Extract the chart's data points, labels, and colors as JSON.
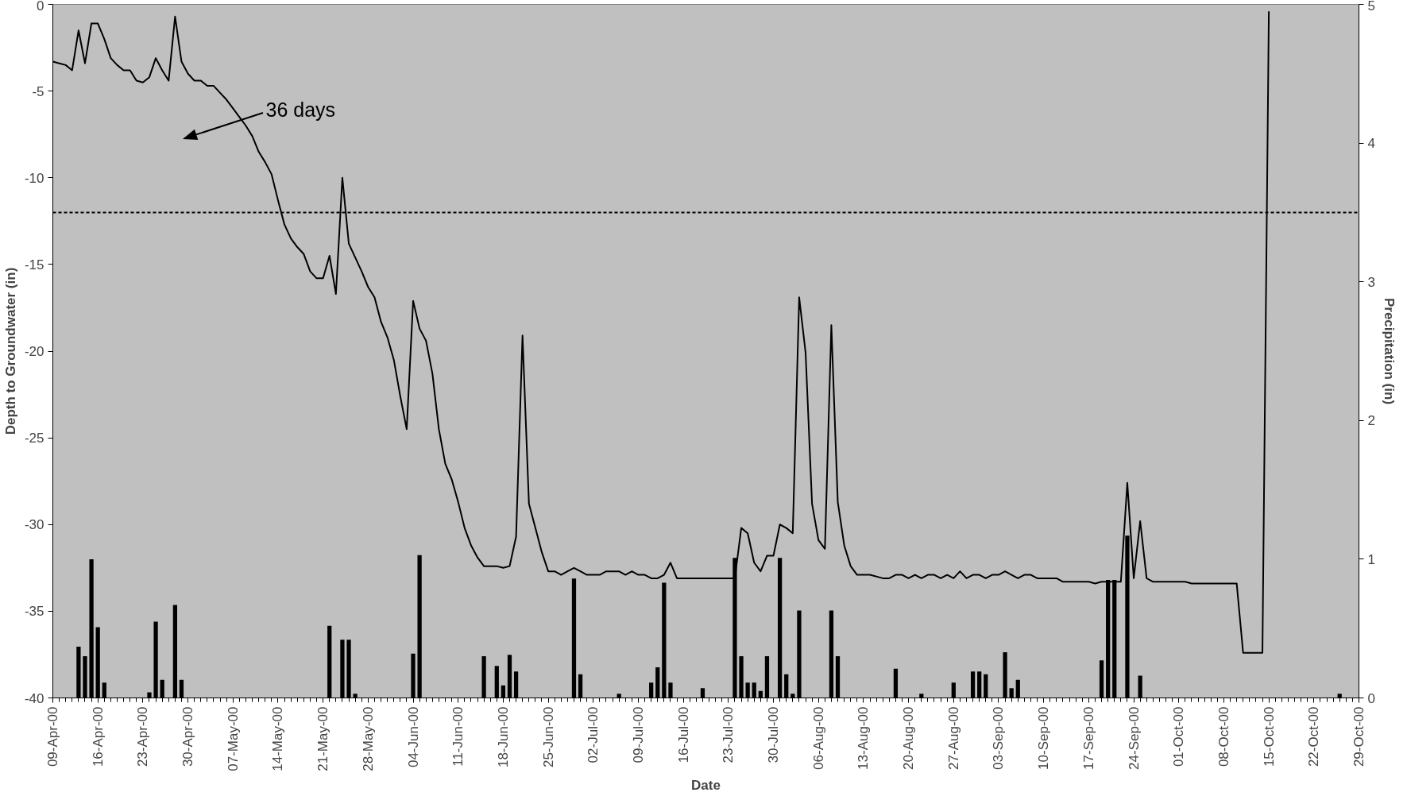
{
  "chart_data": {
    "type": "line",
    "xlabel": "Date",
    "ylabel": "Depth to Groundwater (in)",
    "y2label": "Precipitation (in)",
    "xlim": [
      "2000-04-09",
      "2000-10-29"
    ],
    "xticks": [
      {
        "value": "2000-04-09",
        "label": "09-Apr-00"
      },
      {
        "value": "2000-04-16",
        "label": "16-Apr-00"
      },
      {
        "value": "2000-04-23",
        "label": "23-Apr-00"
      },
      {
        "value": "2000-04-30",
        "label": "30-Apr-00"
      },
      {
        "value": "2000-05-07",
        "label": "07-May-00"
      },
      {
        "value": "2000-05-14",
        "label": "14-May-00"
      },
      {
        "value": "2000-05-21",
        "label": "21-May-00"
      },
      {
        "value": "2000-05-28",
        "label": "28-May-00"
      },
      {
        "value": "2000-06-04",
        "label": "04-Jun-00"
      },
      {
        "value": "2000-06-11",
        "label": "11-Jun-00"
      },
      {
        "value": "2000-06-18",
        "label": "18-Jun-00"
      },
      {
        "value": "2000-06-25",
        "label": "25-Jun-00"
      },
      {
        "value": "2000-07-02",
        "label": "02-Jul-00"
      },
      {
        "value": "2000-07-09",
        "label": "09-Jul-00"
      },
      {
        "value": "2000-07-16",
        "label": "16-Jul-00"
      },
      {
        "value": "2000-07-23",
        "label": "23-Jul-00"
      },
      {
        "value": "2000-07-30",
        "label": "30-Jul-00"
      },
      {
        "value": "2000-08-06",
        "label": "06-Aug-00"
      },
      {
        "value": "2000-08-13",
        "label": "13-Aug-00"
      },
      {
        "value": "2000-08-20",
        "label": "20-Aug-00"
      },
      {
        "value": "2000-08-27",
        "label": "27-Aug-00"
      },
      {
        "value": "2000-09-03",
        "label": "03-Sep-00"
      },
      {
        "value": "2000-09-10",
        "label": "10-Sep-00"
      },
      {
        "value": "2000-09-17",
        "label": "17-Sep-00"
      },
      {
        "value": "2000-09-24",
        "label": "24-Sep-00"
      },
      {
        "value": "2000-10-01",
        "label": "01-Oct-00"
      },
      {
        "value": "2000-10-08",
        "label": "08-Oct-00"
      },
      {
        "value": "2000-10-15",
        "label": "15-Oct-00"
      },
      {
        "value": "2000-10-22",
        "label": "22-Oct-00"
      },
      {
        "value": "2000-10-29",
        "label": "29-Oct-00"
      }
    ],
    "ylim": [
      -40,
      0
    ],
    "yticks": [
      -40,
      -35,
      -30,
      -25,
      -20,
      -15,
      -10,
      -5,
      0
    ],
    "y2lim": [
      0,
      5
    ],
    "y2ticks": [
      0,
      1,
      2,
      3,
      4,
      5
    ],
    "grid": false,
    "ref_lines": [
      {
        "axis": "y",
        "value": -12,
        "color": "#000000",
        "line_style": "dashed"
      }
    ],
    "annotations": [
      "36 days"
    ],
    "series": [
      {
        "type": "bar",
        "axis": "y2",
        "color": "#000000",
        "x": [
          "2000-04-13",
          "2000-04-14",
          "2000-04-15",
          "2000-04-16",
          "2000-04-17",
          "2000-04-24",
          "2000-04-25",
          "2000-04-26",
          "2000-04-28",
          "2000-04-29",
          "2000-05-22",
          "2000-05-24",
          "2000-05-25",
          "2000-05-26",
          "2000-06-04",
          "2000-06-05",
          "2000-06-15",
          "2000-06-17",
          "2000-06-18",
          "2000-06-19",
          "2000-06-20",
          "2000-06-29",
          "2000-06-30",
          "2000-07-06",
          "2000-07-11",
          "2000-07-12",
          "2000-07-13",
          "2000-07-14",
          "2000-07-19",
          "2000-07-24",
          "2000-07-25",
          "2000-07-26",
          "2000-07-27",
          "2000-07-28",
          "2000-07-29",
          "2000-07-31",
          "2000-08-01",
          "2000-08-02",
          "2000-08-03",
          "2000-08-08",
          "2000-08-09",
          "2000-08-18",
          "2000-08-22",
          "2000-08-27",
          "2000-08-30",
          "2000-08-31",
          "2000-09-01",
          "2000-09-04",
          "2000-09-05",
          "2000-09-06",
          "2000-09-19",
          "2000-09-20",
          "2000-09-21",
          "2000-09-23",
          "2000-09-25",
          "2000-10-26"
        ],
        "values": [
          0.37,
          0.3,
          1.0,
          0.51,
          0.11,
          0.04,
          0.55,
          0.13,
          0.67,
          0.13,
          0.52,
          0.42,
          0.42,
          0.03,
          0.32,
          1.03,
          0.3,
          0.23,
          0.09,
          0.31,
          0.19,
          0.86,
          0.17,
          0.03,
          0.11,
          0.22,
          0.83,
          0.11,
          0.07,
          1.01,
          0.3,
          0.11,
          0.11,
          0.05,
          0.3,
          1.01,
          0.17,
          0.03,
          0.63,
          0.63,
          0.3,
          0.21,
          0.03,
          0.11,
          0.19,
          0.19,
          0.17,
          0.33,
          0.07,
          0.13,
          0.27,
          0.85,
          0.85,
          1.17,
          0.16,
          0.03
        ]
      },
      {
        "color": "#000000",
        "line_style": "solid",
        "x": [
          "2000-04-09",
          "2000-04-10",
          "2000-04-11",
          "2000-04-12",
          "2000-04-13",
          "2000-04-14",
          "2000-04-15",
          "2000-04-16",
          "2000-04-17",
          "2000-04-18",
          "2000-04-19",
          "2000-04-20",
          "2000-04-21",
          "2000-04-22",
          "2000-04-23",
          "2000-04-24",
          "2000-04-25",
          "2000-04-26",
          "2000-04-27",
          "2000-04-28",
          "2000-04-29",
          "2000-04-30",
          "2000-05-01",
          "2000-05-02",
          "2000-05-03",
          "2000-05-04",
          "2000-05-05",
          "2000-05-06",
          "2000-05-07",
          "2000-05-08",
          "2000-05-09",
          "2000-05-10",
          "2000-05-11",
          "2000-05-12",
          "2000-05-13",
          "2000-05-14",
          "2000-05-15",
          "2000-05-16",
          "2000-05-17",
          "2000-05-18",
          "2000-05-19",
          "2000-05-20",
          "2000-05-21",
          "2000-05-22",
          "2000-05-23",
          "2000-05-24",
          "2000-05-25",
          "2000-05-26",
          "2000-05-27",
          "2000-05-28",
          "2000-05-29",
          "2000-05-30",
          "2000-05-31",
          "2000-06-01",
          "2000-06-02",
          "2000-06-03",
          "2000-06-04",
          "2000-06-05",
          "2000-06-06",
          "2000-06-07",
          "2000-06-08",
          "2000-06-09",
          "2000-06-10",
          "2000-06-11",
          "2000-06-12",
          "2000-06-13",
          "2000-06-14",
          "2000-06-15",
          "2000-06-16",
          "2000-06-17",
          "2000-06-18",
          "2000-06-19",
          "2000-06-20",
          "2000-06-21",
          "2000-06-22",
          "2000-06-23",
          "2000-06-24",
          "2000-06-25",
          "2000-06-26",
          "2000-06-27",
          "2000-06-28",
          "2000-06-29",
          "2000-06-30",
          "2000-07-01",
          "2000-07-02",
          "2000-07-03",
          "2000-07-04",
          "2000-07-05",
          "2000-07-06",
          "2000-07-07",
          "2000-07-08",
          "2000-07-09",
          "2000-07-10",
          "2000-07-11",
          "2000-07-12",
          "2000-07-13",
          "2000-07-14",
          "2000-07-15",
          "2000-07-24",
          "2000-07-25",
          "2000-07-26",
          "2000-07-27",
          "2000-07-28",
          "2000-07-29",
          "2000-07-30",
          "2000-07-31",
          "2000-08-01",
          "2000-08-02",
          "2000-08-03",
          "2000-08-04",
          "2000-08-05",
          "2000-08-06",
          "2000-08-07",
          "2000-08-08",
          "2000-08-09",
          "2000-08-10",
          "2000-08-11",
          "2000-08-12",
          "2000-08-13",
          "2000-08-14",
          "2000-08-16",
          "2000-08-17",
          "2000-08-18",
          "2000-08-19",
          "2000-08-20",
          "2000-08-21",
          "2000-08-22",
          "2000-08-23",
          "2000-08-24",
          "2000-08-25",
          "2000-08-26",
          "2000-08-27",
          "2000-08-28",
          "2000-08-29",
          "2000-08-30",
          "2000-08-31",
          "2000-09-01",
          "2000-09-02",
          "2000-09-03",
          "2000-09-04",
          "2000-09-05",
          "2000-09-06",
          "2000-09-07",
          "2000-09-08",
          "2000-09-09",
          "2000-09-12",
          "2000-09-13",
          "2000-09-17",
          "2000-09-18",
          "2000-09-19",
          "2000-09-22",
          "2000-09-23",
          "2000-09-24",
          "2000-09-25",
          "2000-09-26",
          "2000-09-27",
          "2000-10-02",
          "2000-10-03",
          "2000-10-10",
          "2000-10-11",
          "2000-10-14",
          "2000-10-15"
        ],
        "values": [
          -3.3,
          -3.4,
          -3.5,
          -3.8,
          -1.5,
          -3.4,
          -1.1,
          -1.1,
          -2.0,
          -3.1,
          -3.5,
          -3.8,
          -3.8,
          -4.4,
          -4.5,
          -4.2,
          -3.1,
          -3.8,
          -4.4,
          -0.7,
          -3.3,
          -4.0,
          -4.4,
          -4.4,
          -4.7,
          -4.7,
          -5.1,
          -5.5,
          -6.0,
          -6.5,
          -7.0,
          -7.6,
          -8.5,
          -9.1,
          -9.8,
          -11.3,
          -12.7,
          -13.5,
          -14.0,
          -14.4,
          -15.4,
          -15.8,
          -15.8,
          -14.5,
          -16.7,
          -10.0,
          -13.8,
          -14.6,
          -15.4,
          -16.3,
          -16.9,
          -18.3,
          -19.2,
          -20.5,
          -22.6,
          -24.5,
          -17.1,
          -18.7,
          -19.4,
          -21.3,
          -24.5,
          -26.5,
          -27.4,
          -28.7,
          -30.2,
          -31.2,
          -31.9,
          -32.4,
          -32.4,
          -32.4,
          -32.5,
          -32.4,
          -30.7,
          -19.1,
          -28.8,
          -30.2,
          -31.6,
          -32.7,
          -32.7,
          -32.9,
          -32.7,
          -32.5,
          -32.7,
          -32.9,
          -32.9,
          -32.9,
          -32.7,
          -32.7,
          -32.7,
          -32.9,
          -32.7,
          -32.9,
          -32.9,
          -33.1,
          -33.1,
          -32.9,
          -32.2,
          -33.1,
          -33.1,
          -30.2,
          -30.5,
          -32.2,
          -32.7,
          -31.8,
          -31.8,
          -30.0,
          -30.2,
          -30.5,
          -16.9,
          -20.1,
          -28.8,
          -30.9,
          -31.4,
          -18.5,
          -28.7,
          -31.2,
          -32.4,
          -32.9,
          -32.9,
          -32.9,
          -33.1,
          -33.1,
          -32.9,
          -32.9,
          -33.1,
          -32.9,
          -33.1,
          -32.9,
          -32.9,
          -33.1,
          -32.9,
          -33.1,
          -32.7,
          -33.1,
          -32.9,
          -32.9,
          -33.1,
          -32.9,
          -32.9,
          -32.7,
          -32.9,
          -33.1,
          -32.9,
          -32.9,
          -33.1,
          -33.1,
          -33.3,
          -33.3,
          -33.4,
          -33.3,
          -33.3,
          -27.6,
          -33.1,
          -29.8,
          -33.1,
          -33.3,
          -33.3,
          -33.4,
          -33.4,
          -37.4,
          -37.4,
          -0.4
        ]
      }
    ]
  }
}
